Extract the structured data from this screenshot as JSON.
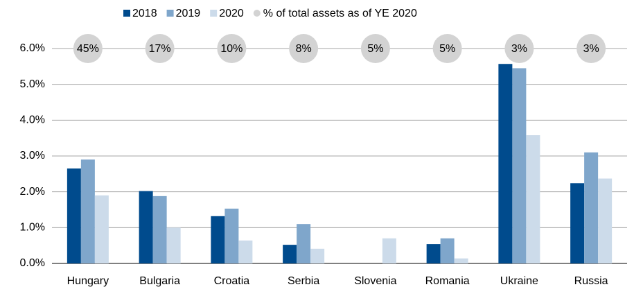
{
  "chart_data": {
    "type": "bar",
    "categories": [
      "Hungary",
      "Bulgaria",
      "Croatia",
      "Serbia",
      "Slovenia",
      "Romania",
      "Ukraine",
      "Russia"
    ],
    "series": [
      {
        "name": "2018",
        "color": "#004b8d",
        "values": [
          2.65,
          2.02,
          1.32,
          0.52,
          null,
          0.54,
          5.57,
          2.24
        ]
      },
      {
        "name": "2019",
        "color": "#7fa6cb",
        "values": [
          2.9,
          1.88,
          1.53,
          1.1,
          null,
          0.7,
          5.45,
          3.1
        ]
      },
      {
        "name": "2020",
        "color": "#ccdbea",
        "values": [
          1.9,
          1.0,
          0.64,
          0.41,
          0.7,
          0.14,
          3.58,
          2.37
        ]
      }
    ],
    "share": {
      "name": "% of total assets as of YE 2020",
      "color": "#d3d3d3",
      "values": [
        45,
        17,
        10,
        8,
        5,
        5,
        3,
        3
      ],
      "value_labels": [
        "45%",
        "17%",
        "10%",
        "8%",
        "5%",
        "5%",
        "3%",
        "3%"
      ]
    },
    "ylim": [
      0,
      6
    ],
    "yticks": [
      {
        "value": 0,
        "label": "0.0%"
      },
      {
        "value": 1,
        "label": "1.0%"
      },
      {
        "value": 2,
        "label": "2.0%"
      },
      {
        "value": 3,
        "label": "3.0%"
      },
      {
        "value": 4,
        "label": "4.0%"
      },
      {
        "value": 5,
        "label": "5.0%"
      },
      {
        "value": 6,
        "label": "6.0%"
      }
    ],
    "grid": true,
    "legend": "top"
  }
}
